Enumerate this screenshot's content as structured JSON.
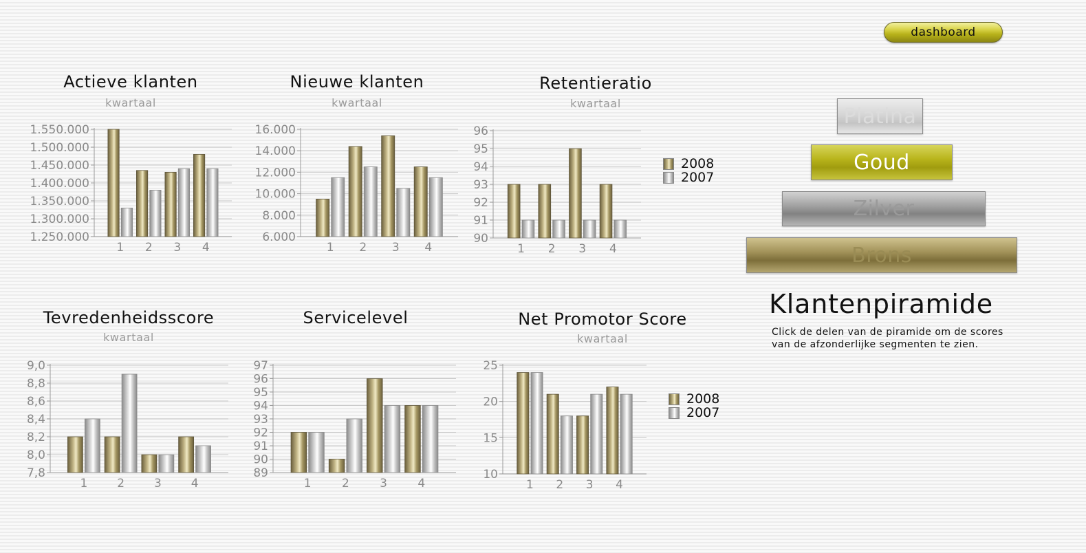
{
  "dashboard_button": "dashboard",
  "legend": [
    "2008",
    "2007"
  ],
  "colors": {
    "bar_2008": "#9c8f5c",
    "bar_2007": "#c9c9c9",
    "axis_text": "#8a8a8a"
  },
  "pyramid": {
    "segments": [
      "Platina",
      "Goud",
      "Zilver",
      "Brons"
    ],
    "title": "Klantenpiramide",
    "description": "Click de delen van de piramide om de scores van de afzonderlijke segmenten te zien."
  },
  "chart_data": [
    {
      "type": "bar",
      "title": "Actieve klanten",
      "subtitle": "kwartaal",
      "categories": [
        "1",
        "2",
        "3",
        "4"
      ],
      "series": [
        {
          "name": "2008",
          "values": [
            1550000,
            1435000,
            1430000,
            1480000
          ]
        },
        {
          "name": "2007",
          "values": [
            1330000,
            1380000,
            1440000,
            1440000
          ]
        }
      ],
      "ylim": [
        1250000,
        1550000
      ],
      "yticks": [
        "1.250.000",
        "1.300.000",
        "1.350.000",
        "1.400.000",
        "1.450.000",
        "1.500.000",
        "1.550.000"
      ],
      "grid": true
    },
    {
      "type": "bar",
      "title": "Nieuwe klanten",
      "subtitle": "kwartaal",
      "categories": [
        "1",
        "2",
        "3",
        "4"
      ],
      "series": [
        {
          "name": "2008",
          "values": [
            9500,
            14400,
            15400,
            12500
          ]
        },
        {
          "name": "2007",
          "values": [
            11500,
            12500,
            10500,
            11500
          ]
        }
      ],
      "ylim": [
        6000,
        16000
      ],
      "yticks": [
        "6.000",
        "8.000",
        "10.000",
        "12.000",
        "14.000",
        "16.000"
      ],
      "grid": true
    },
    {
      "type": "bar",
      "title": "Retentieratio",
      "subtitle": "kwartaal",
      "categories": [
        "1",
        "2",
        "3",
        "4"
      ],
      "series": [
        {
          "name": "2008",
          "values": [
            93,
            93,
            95,
            93
          ]
        },
        {
          "name": "2007",
          "values": [
            91,
            91,
            91,
            91
          ]
        }
      ],
      "ylim": [
        90,
        96
      ],
      "yticks": [
        "90",
        "91",
        "92",
        "93",
        "94",
        "95",
        "96"
      ],
      "grid": true,
      "legend": "right"
    },
    {
      "type": "bar",
      "title": "Tevredenheidsscore",
      "subtitle": "kwartaal",
      "categories": [
        "1",
        "2",
        "3",
        "4"
      ],
      "series": [
        {
          "name": "2008",
          "values": [
            8.2,
            8.2,
            8.0,
            8.2
          ]
        },
        {
          "name": "2007",
          "values": [
            8.4,
            8.9,
            8.0,
            8.1
          ]
        }
      ],
      "ylim": [
        7.8,
        9.0
      ],
      "yticks": [
        "7,8",
        "8,0",
        "8,2",
        "8,4",
        "8,6",
        "8,8",
        "9,0"
      ],
      "grid": true
    },
    {
      "type": "bar",
      "title": "Servicelevel",
      "subtitle": "",
      "categories": [
        "1",
        "2",
        "3",
        "4"
      ],
      "series": [
        {
          "name": "2008",
          "values": [
            92,
            90,
            96,
            94
          ]
        },
        {
          "name": "2007",
          "values": [
            92,
            93,
            94,
            94
          ]
        }
      ],
      "ylim": [
        89,
        97
      ],
      "yticks": [
        "89",
        "90",
        "91",
        "92",
        "93",
        "94",
        "95",
        "96",
        "97"
      ],
      "grid": true
    },
    {
      "type": "bar",
      "title": "Net Promotor Score",
      "subtitle": "kwartaal",
      "categories": [
        "1",
        "2",
        "3",
        "4"
      ],
      "series": [
        {
          "name": "2008",
          "values": [
            24,
            21,
            18,
            22
          ]
        },
        {
          "name": "2007",
          "values": [
            24,
            18,
            21,
            21
          ]
        }
      ],
      "ylim": [
        10,
        25
      ],
      "yticks": [
        "10",
        "15",
        "20",
        "25"
      ],
      "grid": true,
      "legend": "right"
    }
  ]
}
